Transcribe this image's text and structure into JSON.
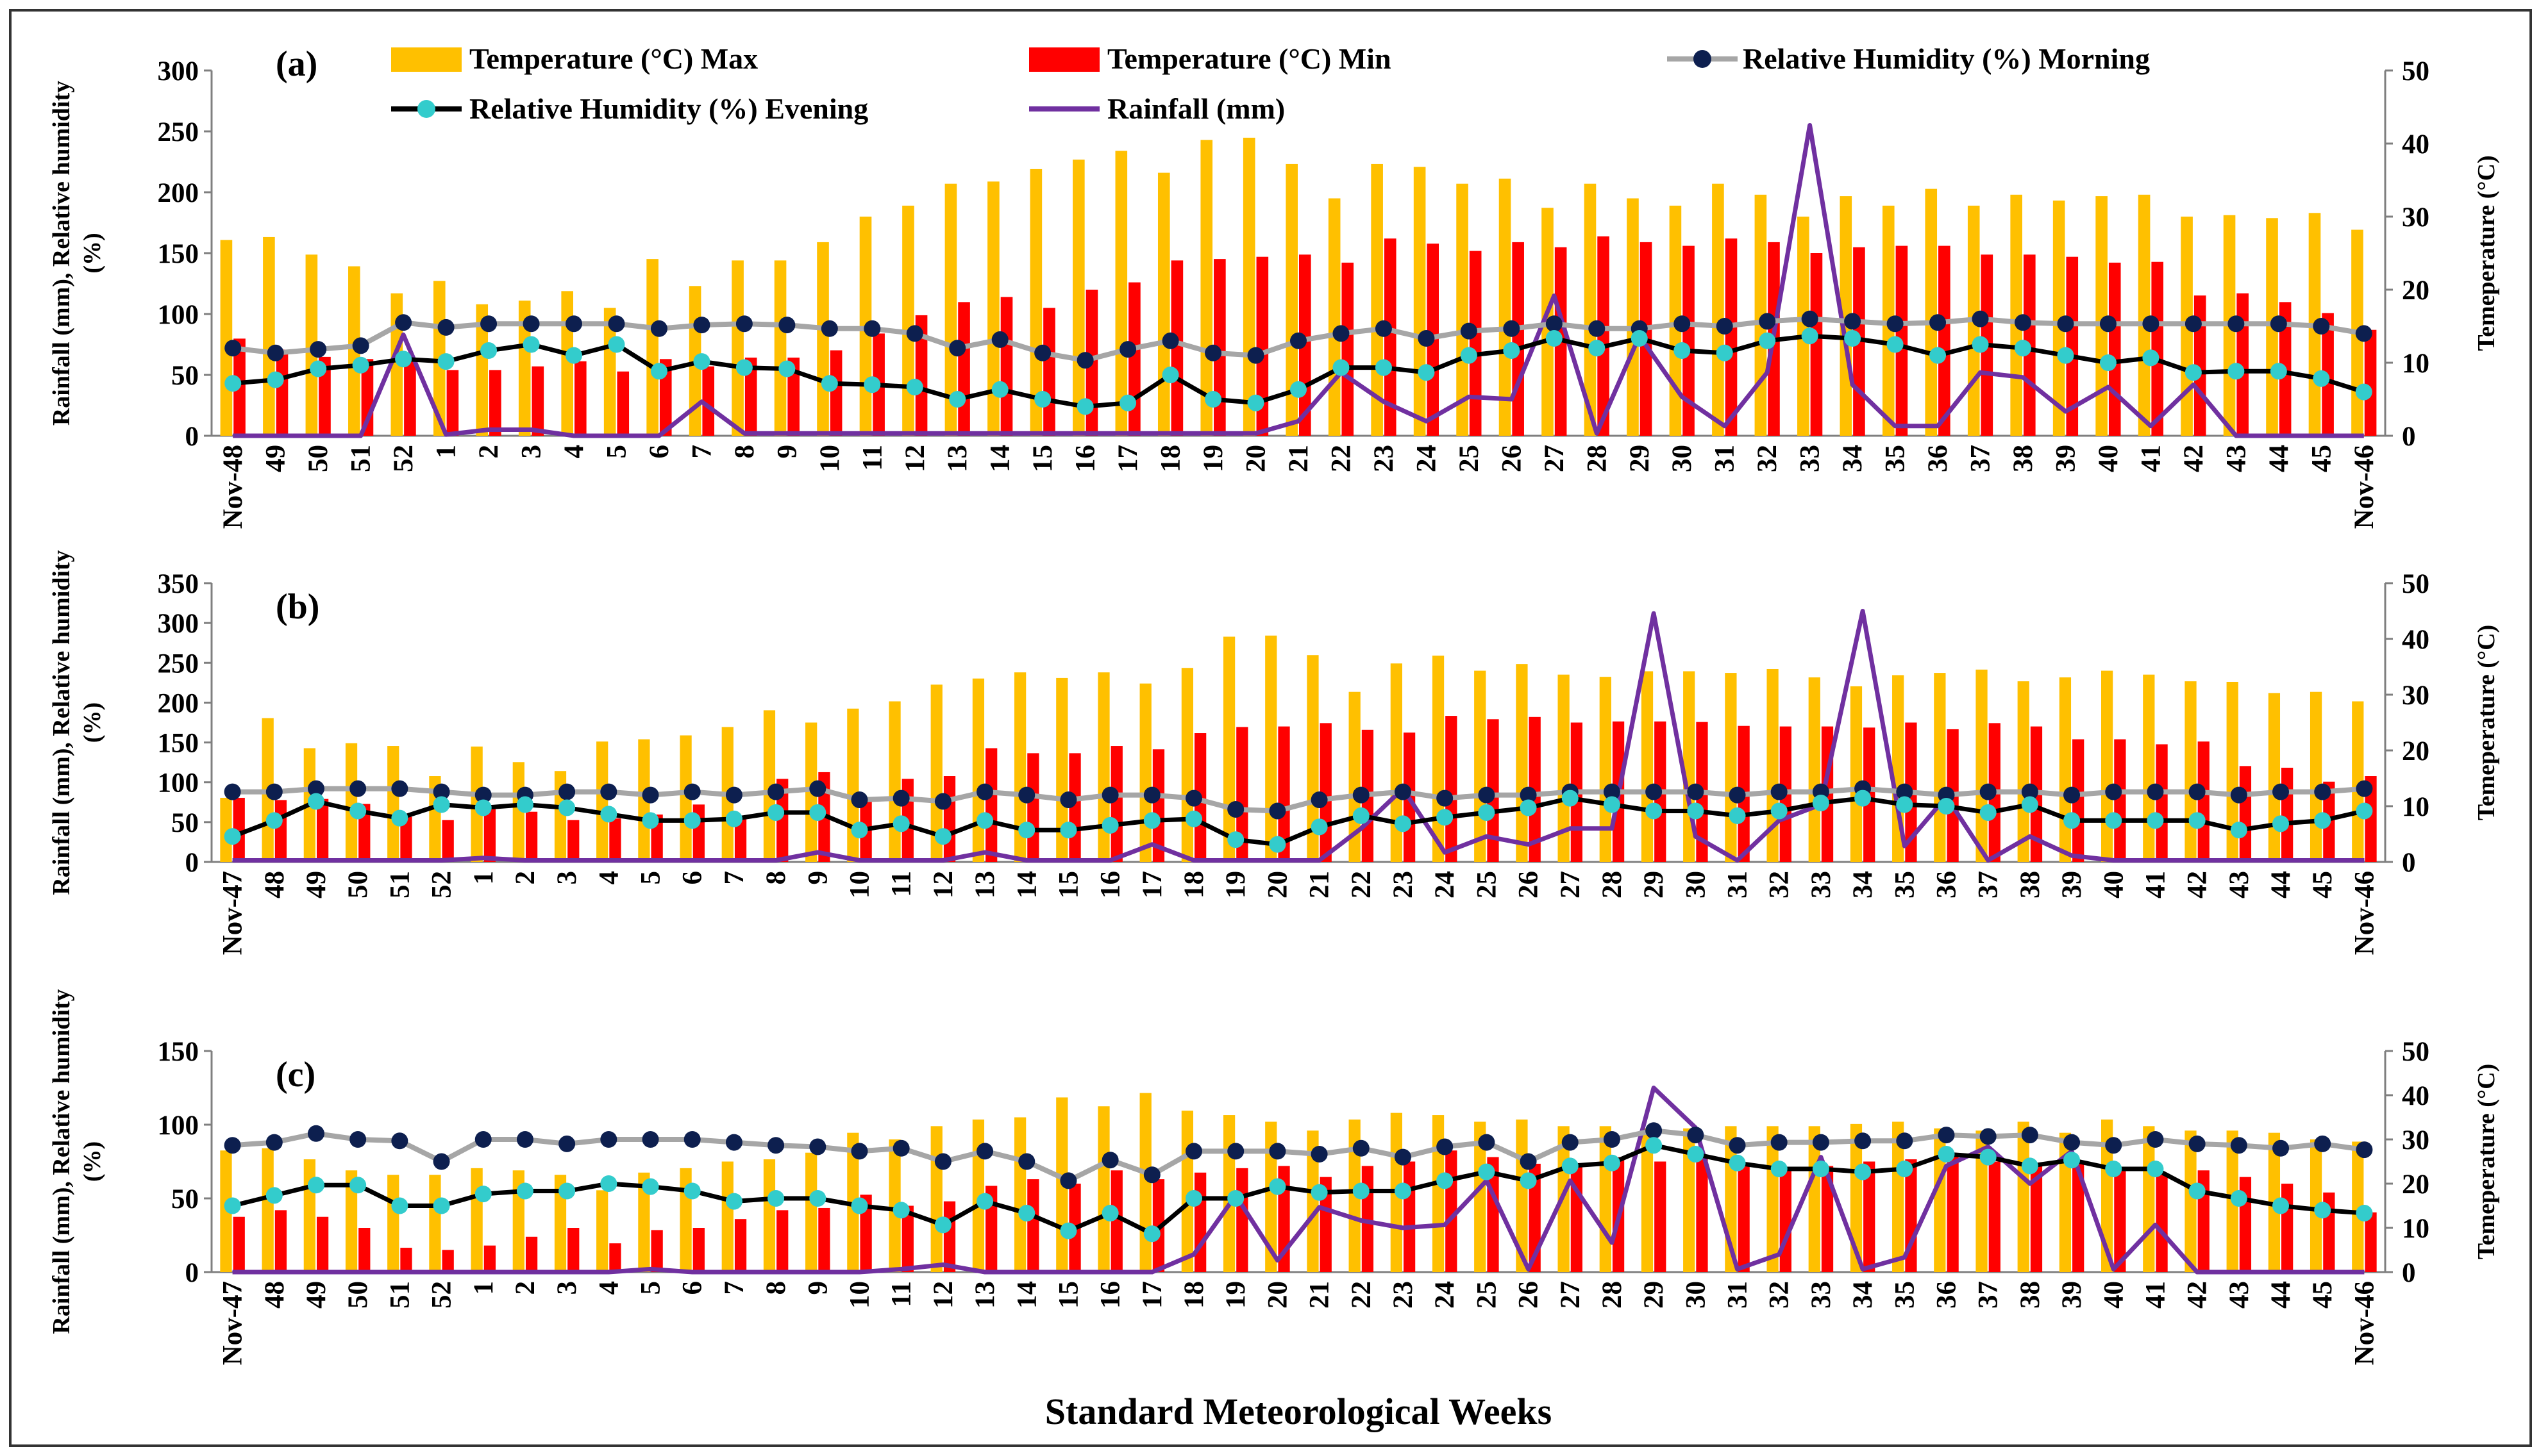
{
  "figure": {
    "xlabel": "Standard Meteorological Weeks",
    "ylabel_left": "Rainfall (mm), Relative humidity (%)",
    "ylabel_right": "Temeperature (°C)"
  },
  "legend": {
    "tmax": "Temperature (°C) Max",
    "tmin": "Temperature (°C) Min",
    "rhm": "Relative Humidity (%) Morning",
    "rhe": "Relative Humidity (%) Evening",
    "rain": "Rainfall (mm)"
  },
  "colors": {
    "tmax": "#FFC000",
    "tmin": "#FF0000",
    "rhm_line": "#A6A6A6",
    "rhm_marker": "#0D1F4F",
    "rhe_line": "#000000",
    "rhe_marker": "#33CCCC",
    "rain": "#7030A0"
  },
  "chart_data": [
    {
      "type": "bar",
      "label": "(a)",
      "categories": [
        "Nov-48",
        "49",
        "50",
        "51",
        "52",
        "1",
        "2",
        "3",
        "4",
        "5",
        "6",
        "7",
        "8",
        "9",
        "10",
        "11",
        "12",
        "13",
        "14",
        "15",
        "16",
        "17",
        "18",
        "19",
        "20",
        "21",
        "22",
        "23",
        "24",
        "25",
        "26",
        "27",
        "28",
        "29",
        "30",
        "31",
        "32",
        "33",
        "34",
        "35",
        "36",
        "37",
        "38",
        "39",
        "40",
        "41",
        "42",
        "43",
        "44",
        "45",
        "Nov-46"
      ],
      "yticks_left": [
        0,
        50,
        100,
        150,
        200,
        250,
        300
      ],
      "ylim_left": [
        0,
        300
      ],
      "yticks_right": [
        0,
        10,
        20,
        30,
        40,
        50
      ],
      "ylim_right": [
        0,
        50
      ],
      "series": [
        {
          "name": "Temperature (°C) Max",
          "axis": "right",
          "kind": "bar",
          "values": [
            26.8,
            27.2,
            24.8,
            23.2,
            19.5,
            21.2,
            18.0,
            18.5,
            19.8,
            17.5,
            24.2,
            20.5,
            24.0,
            24.0,
            26.5,
            30.0,
            31.5,
            34.5,
            34.8,
            36.5,
            37.8,
            39.0,
            36.0,
            40.5,
            40.8,
            37.2,
            32.5,
            37.2,
            36.8,
            34.5,
            35.2,
            31.2,
            34.5,
            32.5,
            31.5,
            34.5,
            33.0,
            30.0,
            32.8,
            31.5,
            33.8,
            31.5,
            33.0,
            32.2,
            32.8,
            33.0,
            30.0,
            30.2,
            29.8,
            30.5,
            28.2
          ]
        },
        {
          "name": "Temperature (°C) Min",
          "axis": "right",
          "kind": "bar",
          "values": [
            13.3,
            11.8,
            10.8,
            10.5,
            10.3,
            9.0,
            9.0,
            9.5,
            10.2,
            8.8,
            10.5,
            9.5,
            10.7,
            10.7,
            11.7,
            14.0,
            16.5,
            18.3,
            19.0,
            17.5,
            20.0,
            21.0,
            24.0,
            24.2,
            24.5,
            24.8,
            23.7,
            27.0,
            26.3,
            25.3,
            26.5,
            25.8,
            27.3,
            26.5,
            26.0,
            27.0,
            26.5,
            25.0,
            25.8,
            26.0,
            26.0,
            24.8,
            24.8,
            24.5,
            23.7,
            23.8,
            19.2,
            19.5,
            18.3,
            16.8,
            14.5
          ]
        },
        {
          "name": "Relative Humidity (%) Morning",
          "axis": "left",
          "kind": "line",
          "values": [
            72,
            68,
            71,
            74,
            93,
            89,
            92,
            92,
            92,
            92,
            88,
            91,
            92,
            91,
            88,
            88,
            84,
            72,
            79,
            68,
            62,
            71,
            78,
            68,
            66,
            78,
            84,
            88,
            80,
            86,
            88,
            92,
            88,
            88,
            92,
            90,
            94,
            96,
            94,
            92,
            93,
            96,
            93,
            92,
            92,
            92,
            92,
            92,
            92,
            90,
            84
          ]
        },
        {
          "name": "Relative Humidity (%) Evening",
          "axis": "left",
          "kind": "line",
          "values": [
            43,
            46,
            55,
            58,
            63,
            61,
            70,
            75,
            66,
            75,
            53,
            61,
            56,
            55,
            43,
            42,
            40,
            30,
            38,
            30,
            24,
            27,
            50,
            30,
            27,
            38,
            56,
            56,
            52,
            66,
            70,
            80,
            72,
            80,
            70,
            68,
            78,
            82,
            80,
            75,
            66,
            75,
            72,
            66,
            60,
            64,
            52,
            53,
            53,
            47,
            36
          ]
        },
        {
          "name": "Rainfall (mm)",
          "axis": "left",
          "kind": "line",
          "values": [
            0,
            0,
            0,
            0,
            83,
            1,
            5,
            5,
            0,
            0,
            0,
            28,
            2,
            2,
            2,
            2,
            2,
            2,
            2,
            2,
            2,
            2,
            2,
            2,
            2,
            12,
            52,
            28,
            12,
            32,
            30,
            115,
            2,
            82,
            32,
            8,
            52,
            255,
            42,
            8,
            8,
            52,
            48,
            20,
            40,
            8,
            42,
            0,
            0,
            0,
            0
          ]
        }
      ]
    },
    {
      "type": "bar",
      "label": "(b)",
      "categories": [
        "Nov-47",
        "48",
        "49",
        "50",
        "51",
        "52",
        "1",
        "2",
        "3",
        "4",
        "5",
        "6",
        "7",
        "8",
        "9",
        "10",
        "11",
        "12",
        "13",
        "14",
        "15",
        "16",
        "17",
        "18",
        "19",
        "20",
        "21",
        "22",
        "23",
        "24",
        "25",
        "26",
        "27",
        "28",
        "29",
        "30",
        "31",
        "32",
        "33",
        "34",
        "35",
        "36",
        "37",
        "38",
        "39",
        "40",
        "41",
        "42",
        "43",
        "44",
        "45",
        "Nov-46"
      ],
      "yticks_left": [
        0,
        50,
        100,
        150,
        200,
        250,
        300,
        350
      ],
      "ylim_left": [
        0,
        350
      ],
      "yticks_right": [
        0,
        10,
        20,
        30,
        40,
        50
      ],
      "ylim_right": [
        0,
        50
      ],
      "series": [
        {
          "name": "Temperature (°C) Max",
          "axis": "right",
          "kind": "bar",
          "values": [
            11.5,
            25.8,
            20.4,
            21.3,
            20.8,
            15.4,
            20.7,
            17.9,
            16.3,
            21.6,
            22.0,
            22.7,
            24.2,
            27.2,
            25.0,
            27.5,
            28.8,
            31.8,
            32.9,
            34.0,
            33.0,
            34.0,
            32.0,
            34.8,
            40.4,
            40.6,
            37.1,
            30.5,
            35.6,
            37.0,
            34.3,
            35.5,
            33.6,
            33.2,
            34.2,
            34.2,
            33.9,
            34.6,
            33.1,
            31.5,
            33.5,
            33.9,
            34.5,
            32.4,
            33.1,
            34.3,
            33.6,
            32.4,
            32.3,
            30.3,
            30.5,
            28.8
          ]
        },
        {
          "name": "Temperature (°C) Min",
          "axis": "right",
          "kind": "bar",
          "values": [
            11.5,
            11.1,
            11.3,
            10.4,
            8.1,
            7.5,
            9.6,
            9.0,
            7.5,
            7.8,
            8.5,
            10.3,
            8.3,
            14.9,
            16.1,
            11.0,
            14.9,
            15.4,
            20.4,
            19.5,
            19.5,
            20.8,
            20.2,
            23.1,
            24.2,
            24.3,
            24.9,
            23.7,
            23.2,
            26.2,
            25.6,
            26.0,
            25.0,
            25.2,
            25.2,
            25.1,
            24.4,
            24.3,
            24.3,
            24.1,
            25.0,
            23.8,
            24.9,
            24.3,
            22.0,
            22.0,
            21.1,
            21.6,
            17.2,
            16.9,
            14.4,
            15.4
          ]
        },
        {
          "name": "Relative Humidity (%) Morning",
          "axis": "left",
          "kind": "line",
          "values": [
            88,
            88,
            92,
            92,
            92,
            88,
            84,
            84,
            88,
            88,
            84,
            88,
            84,
            88,
            92,
            78,
            80,
            76,
            88,
            84,
            78,
            84,
            84,
            80,
            66,
            64,
            78,
            84,
            88,
            80,
            84,
            84,
            88,
            88,
            88,
            88,
            84,
            88,
            88,
            92,
            88,
            84,
            88,
            88,
            84,
            88,
            88,
            88,
            84,
            88,
            88,
            92
          ]
        },
        {
          "name": "Relative Humidity (%) Evening",
          "axis": "left",
          "kind": "line",
          "values": [
            32,
            52,
            76,
            64,
            55,
            72,
            68,
            72,
            68,
            60,
            52,
            52,
            54,
            62,
            62,
            40,
            48,
            32,
            52,
            40,
            40,
            46,
            52,
            54,
            28,
            22,
            44,
            58,
            48,
            56,
            62,
            68,
            80,
            72,
            64,
            64,
            58,
            64,
            74,
            80,
            72,
            70,
            62,
            72,
            52,
            52,
            52,
            52,
            40,
            48,
            52,
            64
          ]
        },
        {
          "name": "Rainfall (mm)",
          "axis": "left",
          "kind": "line",
          "values": [
            2,
            2,
            2,
            2,
            2,
            2,
            5,
            2,
            2,
            2,
            2,
            2,
            2,
            2,
            12,
            2,
            2,
            2,
            12,
            2,
            2,
            2,
            22,
            2,
            2,
            2,
            2,
            42,
            92,
            12,
            32,
            22,
            42,
            42,
            312,
            32,
            2,
            52,
            72,
            315,
            20,
            82,
            2,
            32,
            8,
            2,
            2,
            2,
            2,
            2,
            2,
            2
          ]
        }
      ]
    },
    {
      "type": "bar",
      "label": "(c)",
      "categories": [
        "Nov-47",
        "48",
        "49",
        "50",
        "51",
        "52",
        "1",
        "2",
        "3",
        "4",
        "5",
        "6",
        "7",
        "8",
        "9",
        "10",
        "11",
        "12",
        "13",
        "14",
        "15",
        "16",
        "17",
        "18",
        "19",
        "20",
        "21",
        "22",
        "23",
        "24",
        "25",
        "26",
        "27",
        "28",
        "29",
        "30",
        "31",
        "32",
        "33",
        "34",
        "35",
        "36",
        "37",
        "38",
        "39",
        "40",
        "41",
        "42",
        "43",
        "44",
        "45",
        "Nov-46"
      ],
      "yticks_left": [
        0,
        50,
        100,
        150
      ],
      "ylim_left": [
        0,
        150
      ],
      "yticks_right": [
        0,
        10,
        20,
        30,
        40,
        50
      ],
      "ylim_right": [
        0,
        50
      ],
      "series": [
        {
          "name": "Temperature (°C) Max",
          "axis": "right",
          "kind": "bar",
          "values": [
            27.5,
            28.0,
            25.5,
            23.0,
            22.0,
            22.0,
            23.5,
            23.0,
            22.0,
            18.5,
            22.5,
            23.5,
            25.0,
            25.5,
            27.0,
            31.5,
            30.0,
            33.0,
            34.5,
            35.0,
            39.5,
            37.5,
            40.5,
            36.5,
            35.5,
            34.0,
            32.0,
            34.5,
            36.0,
            35.5,
            34.0,
            34.5,
            33.0,
            33.0,
            32.5,
            32.5,
            33.0,
            33.0,
            33.0,
            33.5,
            34.0,
            32.5,
            32.0,
            34.0,
            31.5,
            34.5,
            33.0,
            32.0,
            32.0,
            31.5,
            30.0,
            29.5
          ]
        },
        {
          "name": "Temperature (°C) Min",
          "axis": "right",
          "kind": "bar",
          "values": [
            12.5,
            14.0,
            12.5,
            10.0,
            5.5,
            5.0,
            6.0,
            8.0,
            10.0,
            6.5,
            9.5,
            10.0,
            12.0,
            14.0,
            14.5,
            17.5,
            15.0,
            16.0,
            19.5,
            21.0,
            20.0,
            23.0,
            21.0,
            22.5,
            23.5,
            24.0,
            21.5,
            24.0,
            25.0,
            27.5,
            26.0,
            24.5,
            24.0,
            26.0,
            25.0,
            26.5,
            24.0,
            23.5,
            24.0,
            25.0,
            25.5,
            26.5,
            25.0,
            24.0,
            24.5,
            23.0,
            22.0,
            23.0,
            21.5,
            20.0,
            18.0,
            13.5
          ]
        },
        {
          "name": "Relative Humidity (%) Morning",
          "axis": "left",
          "kind": "line",
          "values": [
            86,
            88,
            94,
            90,
            89,
            75,
            90,
            90,
            87,
            90,
            90,
            90,
            88,
            86,
            85,
            82,
            84,
            75,
            82,
            75,
            62,
            76,
            66,
            82,
            82,
            82,
            80,
            84,
            78,
            85,
            88,
            75,
            88,
            90,
            96,
            93,
            86,
            88,
            88,
            89,
            89,
            93,
            92,
            93,
            88,
            86,
            90,
            87,
            86,
            84,
            87,
            83
          ]
        },
        {
          "name": "Relative Humidity (%) Evening",
          "axis": "left",
          "kind": "line",
          "values": [
            45,
            52,
            59,
            59,
            45,
            45,
            53,
            55,
            55,
            60,
            58,
            55,
            48,
            50,
            50,
            45,
            42,
            32,
            48,
            40,
            28,
            40,
            26,
            50,
            50,
            58,
            54,
            55,
            55,
            62,
            68,
            62,
            72,
            74,
            86,
            80,
            74,
            70,
            70,
            68,
            70,
            80,
            78,
            72,
            76,
            70,
            70,
            55,
            50,
            45,
            42,
            40
          ]
        },
        {
          "name": "Rainfall (mm)",
          "axis": "left",
          "kind": "line",
          "values": [
            0,
            0,
            0,
            0,
            0,
            0,
            0,
            0,
            0,
            0,
            2,
            0,
            0,
            0,
            0,
            0,
            2,
            5,
            0,
            0,
            0,
            0,
            0,
            12,
            52,
            8,
            44,
            35,
            30,
            32,
            62,
            2,
            62,
            20,
            125,
            98,
            2,
            12,
            78,
            2,
            10,
            72,
            85,
            60,
            82,
            2,
            32,
            0,
            0,
            0,
            0,
            0
          ]
        }
      ]
    }
  ]
}
